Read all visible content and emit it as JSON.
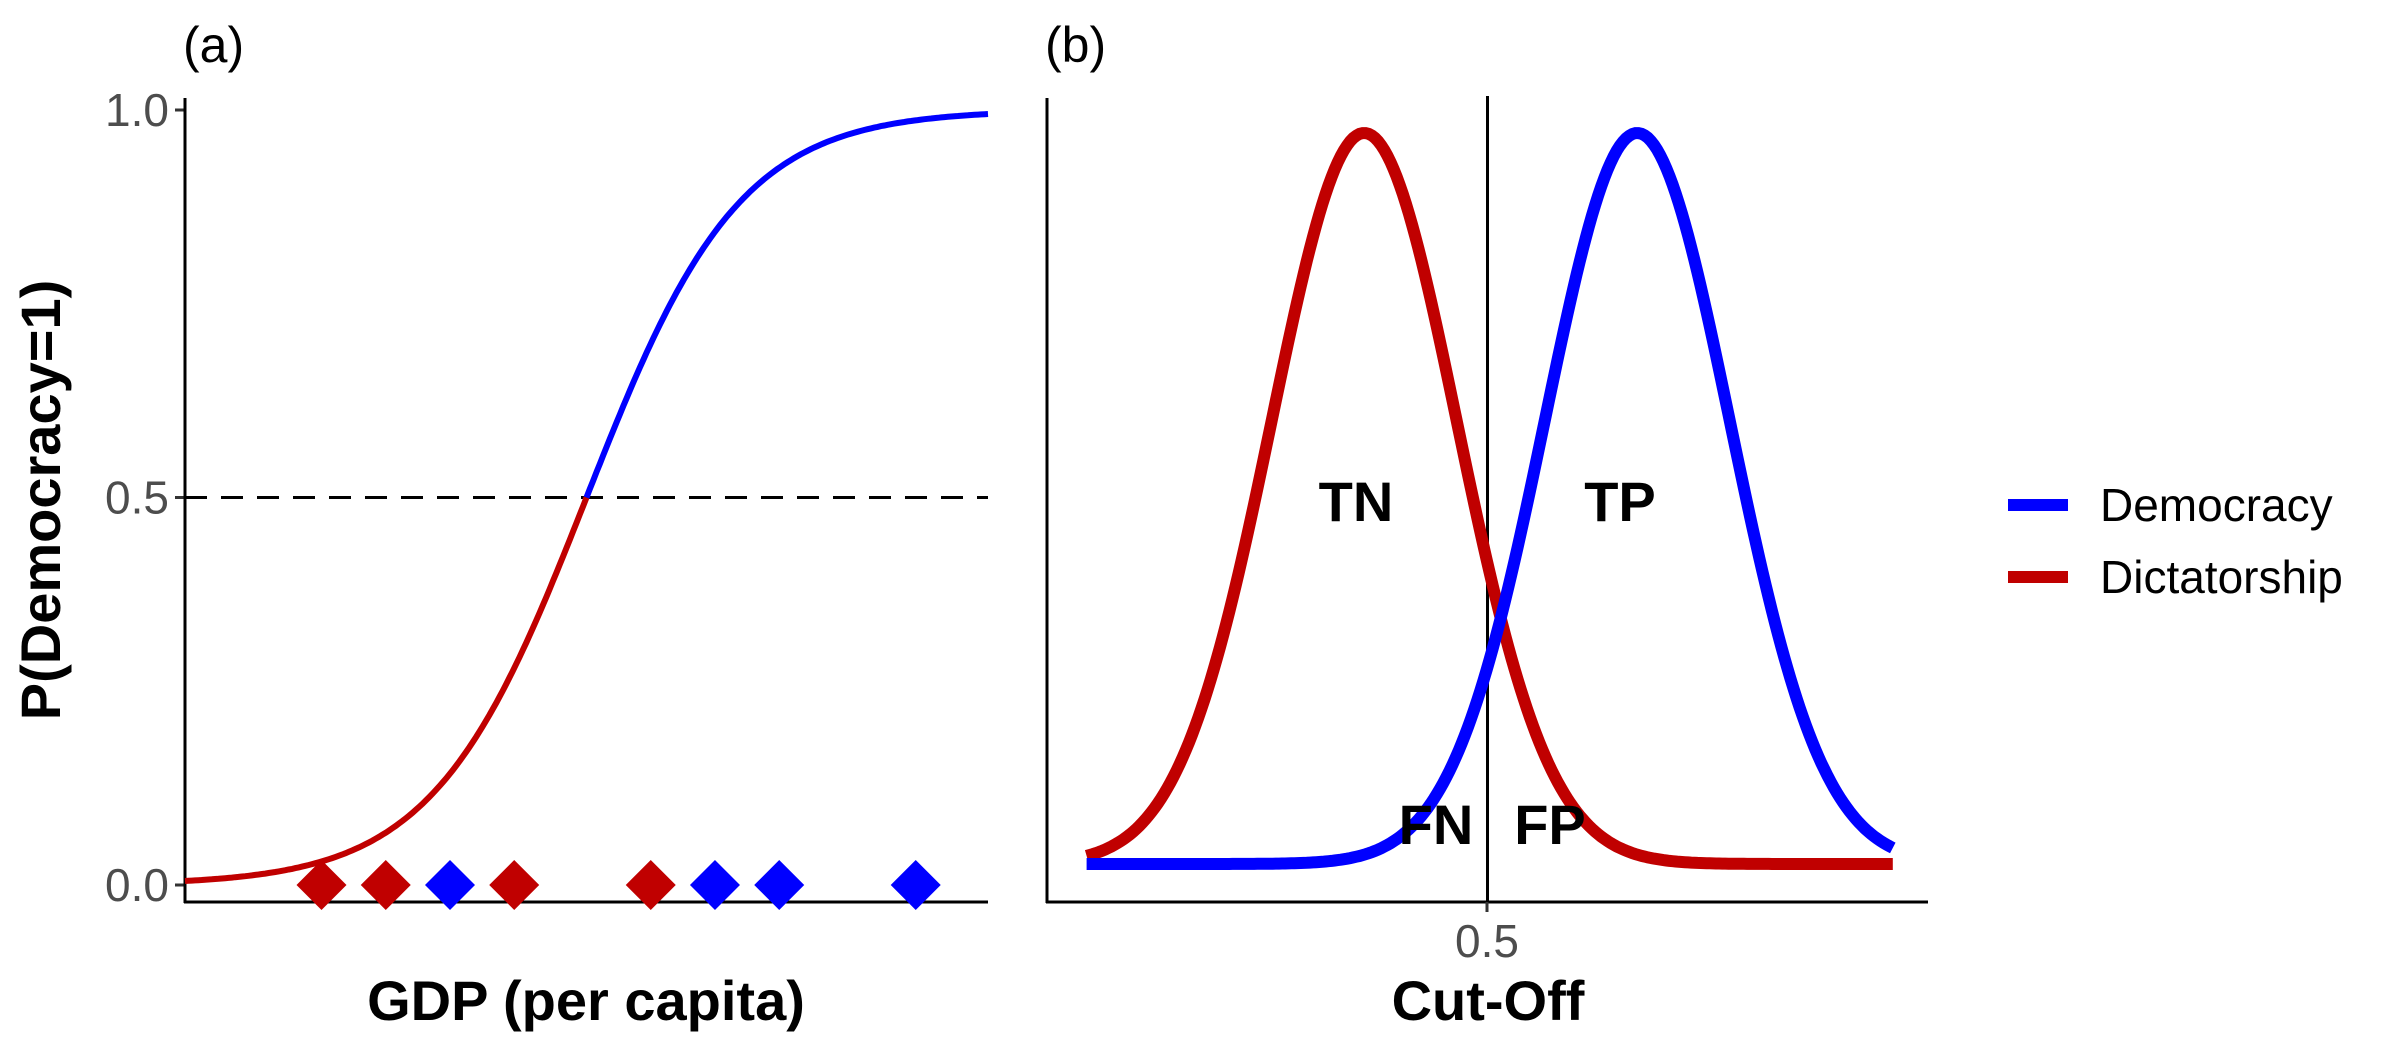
{
  "colors": {
    "democracy": "#0000ff",
    "dictatorship": "#c00000"
  },
  "chart_data": [
    {
      "panel": "(a)",
      "type": "line",
      "xlabel": "GDP (per capita)",
      "ylabel": "P(Democracy=1)",
      "ylim": [
        0,
        1
      ],
      "y_ticks": [
        {
          "value": 0.0,
          "label": "0.0"
        },
        {
          "value": 0.5,
          "label": "0.5"
        },
        {
          "value": 1.0,
          "label": "1.0"
        }
      ],
      "threshold": 0.5,
      "points": [
        {
          "x": 0.17,
          "class": "Dictatorship"
        },
        {
          "x": 0.25,
          "class": "Dictatorship"
        },
        {
          "x": 0.33,
          "class": "Democracy"
        },
        {
          "x": 0.41,
          "class": "Dictatorship"
        },
        {
          "x": 0.58,
          "class": "Dictatorship"
        },
        {
          "x": 0.66,
          "class": "Democracy"
        },
        {
          "x": 0.74,
          "class": "Democracy"
        },
        {
          "x": 0.91,
          "class": "Democracy"
        }
      ]
    },
    {
      "panel": "(b)",
      "type": "line",
      "xlabel": "Cut-Off",
      "x_ticks": [
        {
          "value": 0.5,
          "label": "0.5"
        }
      ],
      "cutoff": 0.5,
      "region_labels": [
        "TN",
        "TP",
        "FN",
        "FP"
      ],
      "series": [
        {
          "name": "Democracy",
          "peak_x": 0.67
        },
        {
          "name": "Dictatorship",
          "peak_x": 0.36
        }
      ]
    }
  ],
  "legend": {
    "position": "right",
    "items": [
      {
        "label": "Democracy",
        "color_key": "democracy"
      },
      {
        "label": "Dictatorship",
        "color_key": "dictatorship"
      }
    ]
  }
}
